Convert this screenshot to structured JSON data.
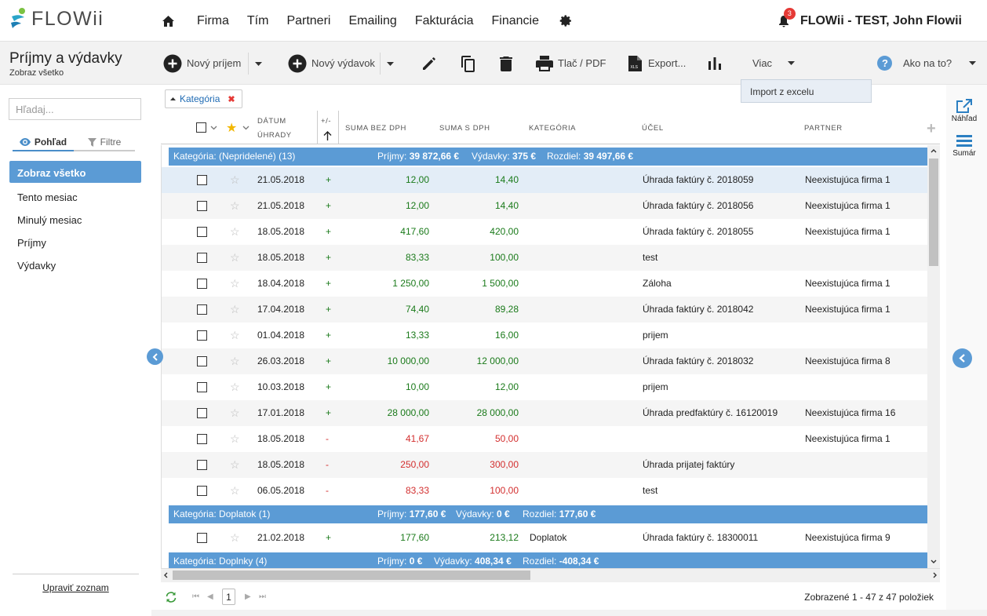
{
  "brand": {
    "name": "FLOWii"
  },
  "nav": {
    "items": [
      "Firma",
      "Tím",
      "Partneri",
      "Emailing",
      "Fakturácia",
      "Financie"
    ]
  },
  "user": {
    "notifications": "3",
    "name": "FLOWii - TEST, John Flowii"
  },
  "page": {
    "title": "Príjmy a výdavky",
    "subtitle": "Zobraz všetko"
  },
  "toolbar": {
    "new_income": "Nový príjem",
    "new_expense": "Nový výdavok",
    "print": "Tlač / PDF",
    "export": "Export...",
    "more": "Viac",
    "help": "Ako na to?",
    "dropdown_item": "Import z excelu"
  },
  "sidebar": {
    "search_placeholder": "Hľadaj...",
    "tab_view": "Pohľad",
    "tab_filter": "Filtre",
    "items": [
      "Zobraz všetko",
      "Tento mesiac",
      "Minulý mesiac",
      "Príjmy",
      "Výdavky"
    ],
    "footer": "Upraviť zoznam"
  },
  "filter_chip": "Kategória",
  "columns": {
    "date_1": "DÁTUM",
    "date_2": "ÚHRADY",
    "sign": "+/-",
    "net": "SUMA BEZ DPH",
    "gross": "SUMA S DPH",
    "category": "KATEGÓRIA",
    "purpose": "ÚČEL",
    "partner": "PARTNER"
  },
  "groups": [
    {
      "title": "Kategória: (Nepridelené) (13)",
      "income_label": "Príjmy:",
      "income": "39 872,66 €",
      "expense_label": "Výdavky:",
      "expense": "375 €",
      "diff_label": "Rozdiel:",
      "diff": "39 497,66 €"
    },
    {
      "title": "Kategória: Doplatok (1)",
      "income_label": "Príjmy:",
      "income": "177,60 €",
      "expense_label": "Výdavky:",
      "expense": "0 €",
      "diff_label": "Rozdiel:",
      "diff": "177,60 €"
    },
    {
      "title": "Kategória: Doplnky (4)",
      "income_label": "Príjmy:",
      "income": "0 €",
      "expense_label": "Výdavky:",
      "expense": "408,34 €",
      "diff_label": "Rozdiel:",
      "diff": "-408,34 €"
    }
  ],
  "rows": [
    {
      "date": "21.05.2018",
      "sign": "+",
      "net": "12,00",
      "gross": "14,40",
      "category": "",
      "purpose": "Úhrada faktúry č. 2018059",
      "partner": "Neexistujúca firma 1"
    },
    {
      "date": "21.05.2018",
      "sign": "+",
      "net": "12,00",
      "gross": "14,40",
      "category": "",
      "purpose": "Úhrada faktúry č. 2018056",
      "partner": "Neexistujúca firma 1"
    },
    {
      "date": "18.05.2018",
      "sign": "+",
      "net": "417,60",
      "gross": "420,00",
      "category": "",
      "purpose": "Úhrada faktúry č. 2018055",
      "partner": "Neexistujúca firma 1"
    },
    {
      "date": "18.05.2018",
      "sign": "+",
      "net": "83,33",
      "gross": "100,00",
      "category": "",
      "purpose": "test",
      "partner": ""
    },
    {
      "date": "18.04.2018",
      "sign": "+",
      "net": "1 250,00",
      "gross": "1 500,00",
      "category": "",
      "purpose": "Záloha",
      "partner": "Neexistujúca firma 1"
    },
    {
      "date": "17.04.2018",
      "sign": "+",
      "net": "74,40",
      "gross": "89,28",
      "category": "",
      "purpose": "Úhrada faktúry č. 2018042",
      "partner": "Neexistujúca firma 1"
    },
    {
      "date": "01.04.2018",
      "sign": "+",
      "net": "13,33",
      "gross": "16,00",
      "category": "",
      "purpose": "prijem",
      "partner": ""
    },
    {
      "date": "26.03.2018",
      "sign": "+",
      "net": "10 000,00",
      "gross": "12 000,00",
      "category": "",
      "purpose": "Úhrada faktúry č. 2018032",
      "partner": "Neexistujúca firma 8"
    },
    {
      "date": "10.03.2018",
      "sign": "+",
      "net": "10,00",
      "gross": "12,00",
      "category": "",
      "purpose": "prijem",
      "partner": ""
    },
    {
      "date": "17.01.2018",
      "sign": "+",
      "net": "28 000,00",
      "gross": "28 000,00",
      "category": "",
      "purpose": "Úhrada predfaktúry č. 16120019",
      "partner": "Neexistujúca firma 16"
    },
    {
      "date": "18.05.2018",
      "sign": "-",
      "net": "41,67",
      "gross": "50,00",
      "category": "",
      "purpose": "",
      "partner": "Neexistujúca firma 1"
    },
    {
      "date": "18.05.2018",
      "sign": "-",
      "net": "250,00",
      "gross": "300,00",
      "category": "",
      "purpose": "Úhrada prijatej faktúry",
      "partner": ""
    },
    {
      "date": "06.05.2018",
      "sign": "-",
      "net": "83,33",
      "gross": "100,00",
      "category": "",
      "purpose": "test",
      "partner": ""
    },
    {
      "date": "21.02.2018",
      "sign": "+",
      "net": "177,60",
      "gross": "213,12",
      "category": "Doplatok",
      "purpose": "Úhrada faktúry č. 18300011",
      "partner": "Neexistujúca firma 9"
    }
  ],
  "pager": {
    "page": "1",
    "count": "Zobrazené 1 - 47 z 47 položiek"
  },
  "right_panel": {
    "preview": "Náhľad",
    "summary": "Sumár"
  },
  "colors": {
    "accent": "#5b9bd5",
    "positive": "#1a7a1a",
    "negative": "#d32f2f"
  }
}
